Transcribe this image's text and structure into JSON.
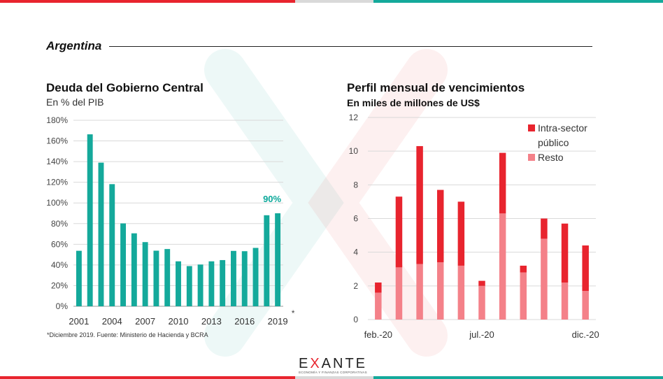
{
  "colors": {
    "teal": "#14a99b",
    "red": "#e8242e",
    "pink": "#f48189",
    "grey": "#d9d9d9"
  },
  "header": {
    "region": "Argentina"
  },
  "charts": {
    "debt": {
      "title": "Deuda del Gobierno Central",
      "subtitle": "En % del PIB",
      "footnote_marker": "*",
      "footnote": "*Diciembre 2019. Fuente: Ministerio de Hacienda y BCRA"
    },
    "maturities": {
      "title": "Perfil mensual de vencimientos",
      "subtitle": "En miles de millones de US$"
    }
  },
  "chart_data": [
    {
      "type": "bar",
      "title": "Deuda del Gobierno Central",
      "subtitle": "En % del PIB",
      "categories": [
        "2001",
        "2002",
        "2003",
        "2004",
        "2005",
        "2006",
        "2007",
        "2008",
        "2009",
        "2010",
        "2011",
        "2012",
        "2013",
        "2014",
        "2015",
        "2016",
        "2017",
        "2018",
        "2019"
      ],
      "x_tick_labels": [
        "2001",
        "2004",
        "2007",
        "2010",
        "2013",
        "2016",
        "2019"
      ],
      "values": [
        53.7,
        166.4,
        139.0,
        118.2,
        80.2,
        70.6,
        62.1,
        53.8,
        55.4,
        43.5,
        38.9,
        40.4,
        43.5,
        44.7,
        53.6,
        53.3,
        56.5,
        88.1,
        90.0
      ],
      "ylim": [
        0,
        180
      ],
      "y_tick_labels": [
        "0%",
        "20%",
        "40%",
        "60%",
        "80%",
        "100%",
        "120%",
        "140%",
        "160%",
        "180%"
      ],
      "annotation": "90%",
      "color": "#14a99b",
      "grid": true
    },
    {
      "type": "bar",
      "stacked": true,
      "title": "Perfil mensual de vencimientos",
      "subtitle": "En miles de millones de US$",
      "categories": [
        "feb.-20",
        "mar.-20",
        "abr.-20",
        "may.-20",
        "jun.-20",
        "jul.-20",
        "ago.-20",
        "sep.-20",
        "oct.-20",
        "nov.-20",
        "dic.-20"
      ],
      "x_tick_labels": [
        "feb.-20",
        "jul.-20",
        "dic.-20"
      ],
      "series": [
        {
          "name": "Resto",
          "color": "#f48189",
          "values": [
            1.6,
            3.1,
            3.3,
            3.4,
            3.2,
            2.0,
            6.3,
            2.8,
            4.8,
            2.2,
            1.7
          ]
        },
        {
          "name": "Intra-sector público",
          "color": "#e8242e",
          "values": [
            0.6,
            4.2,
            7.0,
            4.3,
            3.8,
            0.3,
            3.6,
            0.4,
            1.2,
            3.5,
            2.7
          ]
        }
      ],
      "legend": [
        "Intra-sector",
        "público",
        "Resto"
      ],
      "ylim": [
        0,
        12
      ],
      "y_tick_labels": [
        "0",
        "2",
        "4",
        "6",
        "8",
        "10",
        "12"
      ],
      "legend_position": "top-right",
      "grid": true
    }
  ],
  "logo": {
    "name": "EXANTE",
    "tagline": "ECONOMÍA Y FINANZAS CORPORATIVAS"
  }
}
